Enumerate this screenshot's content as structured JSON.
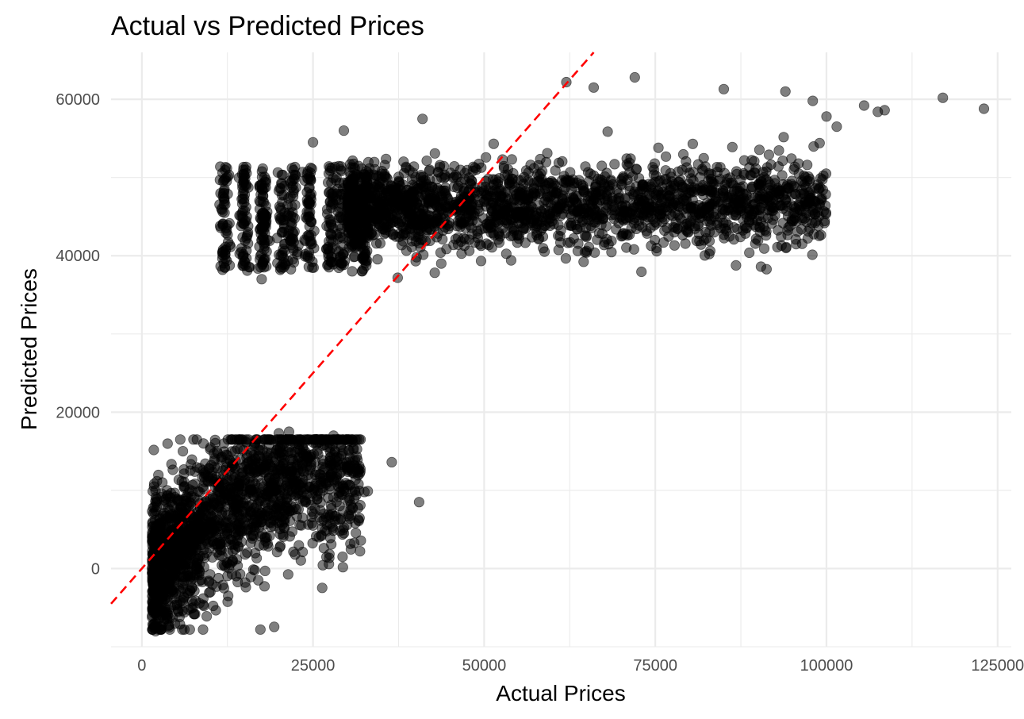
{
  "chart_data": {
    "type": "scatter",
    "title": "Actual vs Predicted Prices",
    "xlabel": "Actual Prices",
    "ylabel": "Predicted Prices",
    "xlim": [
      -4500,
      127000
    ],
    "ylim": [
      -10000,
      66000
    ],
    "x_ticks": [
      0,
      25000,
      50000,
      75000,
      100000,
      125000
    ],
    "y_ticks": [
      0,
      20000,
      40000,
      60000
    ],
    "x_tick_labels": [
      "0",
      "25000",
      "50000",
      "75000",
      "100000",
      "125000"
    ],
    "y_tick_labels": [
      "0",
      "20000",
      "40000",
      "60000"
    ],
    "grid": true,
    "legend": "none",
    "point_color": "#000000",
    "point_alpha": 0.5,
    "reference_line": {
      "slope": 1,
      "intercept": 0,
      "color": "#ff0000",
      "style": "dashed"
    },
    "clusters": [
      {
        "x_range": [
          1500,
          32000
        ],
        "y_center_at_xmin": 1000,
        "y_center_slope": 0.42,
        "y_spread": 4500,
        "density": "very high"
      },
      {
        "x_range": [
          12000,
          110000
        ],
        "y_center_at_xmin": 43000,
        "y_center_slope": 0.18,
        "y_spread": 4000,
        "density": "very high"
      }
    ],
    "points": [
      [
        12000,
        48000
      ],
      [
        12100,
        38500
      ],
      [
        14800,
        39000
      ],
      [
        15500,
        43000
      ],
      [
        17500,
        37000
      ],
      [
        25000,
        54500
      ],
      [
        29500,
        56000
      ],
      [
        40000,
        39300
      ],
      [
        41000,
        57500
      ],
      [
        55000,
        44200
      ],
      [
        62000,
        62200
      ],
      [
        66000,
        61500
      ],
      [
        72000,
        62800
      ],
      [
        85000,
        61300
      ],
      [
        94000,
        61000
      ],
      [
        98000,
        59800
      ],
      [
        99000,
        54400
      ],
      [
        100000,
        57800
      ],
      [
        101500,
        56500
      ],
      [
        105500,
        59200
      ],
      [
        107500,
        58400
      ],
      [
        108500,
        58600
      ],
      [
        117000,
        60200
      ],
      [
        123000,
        58800
      ],
      [
        1500,
        -6000
      ],
      [
        2000,
        -8000
      ],
      [
        4000,
        -7500
      ],
      [
        5500,
        -6200
      ],
      [
        7500,
        -4500
      ],
      [
        10000,
        -3000
      ],
      [
        12000,
        -2500
      ],
      [
        17000,
        -1500
      ],
      [
        18000,
        -300
      ],
      [
        20000,
        17300
      ],
      [
        21500,
        17500
      ],
      [
        25000,
        5500
      ],
      [
        27500,
        6800
      ],
      [
        28000,
        17000
      ],
      [
        30000,
        5600
      ],
      [
        30200,
        6700
      ],
      [
        31500,
        13900
      ],
      [
        32500,
        9800
      ],
      [
        33000,
        9900
      ],
      [
        36500,
        13600
      ],
      [
        40500,
        8500
      ],
      [
        3000,
        11000
      ],
      [
        6000,
        15000
      ],
      [
        9000,
        16000
      ],
      [
        12000,
        16000
      ]
    ]
  }
}
